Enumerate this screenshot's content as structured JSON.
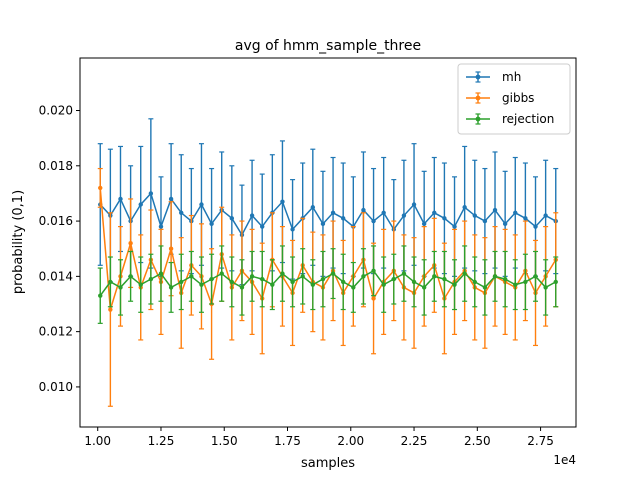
{
  "chart_data": {
    "type": "line",
    "title": "avg of hmm_sample_three",
    "xlabel": "samples",
    "ylabel": "probability (0,1)",
    "x_offset_label": "1e4",
    "xlim": [
      0.93,
      2.89
    ],
    "ylim": [
      0.00855,
      0.0219
    ],
    "x_ticks": [
      {
        "value": 1.0,
        "label": "1.00"
      },
      {
        "value": 1.25,
        "label": "1.25"
      },
      {
        "value": 1.5,
        "label": "1.50"
      },
      {
        "value": 1.75,
        "label": "1.75"
      },
      {
        "value": 2.0,
        "label": "2.00"
      },
      {
        "value": 2.25,
        "label": "2.25"
      },
      {
        "value": 2.5,
        "label": "2.50"
      },
      {
        "value": 2.75,
        "label": "2.75"
      }
    ],
    "y_ticks": [
      {
        "value": 0.01,
        "label": "0.010"
      },
      {
        "value": 0.012,
        "label": "0.012"
      },
      {
        "value": 0.014,
        "label": "0.014"
      },
      {
        "value": 0.016,
        "label": "0.016"
      },
      {
        "value": 0.018,
        "label": "0.018"
      },
      {
        "value": 0.02,
        "label": "0.020"
      }
    ],
    "grid": false,
    "legend": "top-right",
    "x": [
      1.01,
      1.05,
      1.09,
      1.13,
      1.17,
      1.21,
      1.25,
      1.29,
      1.33,
      1.37,
      1.41,
      1.45,
      1.49,
      1.53,
      1.57,
      1.61,
      1.65,
      1.69,
      1.73,
      1.77,
      1.81,
      1.85,
      1.89,
      1.93,
      1.97,
      2.01,
      2.05,
      2.09,
      2.13,
      2.17,
      2.21,
      2.25,
      2.29,
      2.33,
      2.37,
      2.41,
      2.45,
      2.49,
      2.53,
      2.57,
      2.61,
      2.65,
      2.69,
      2.73,
      2.77,
      2.81
    ],
    "series": [
      {
        "name": "mh",
        "color": "#1f77b4",
        "values": [
          0.0166,
          0.0162,
          0.0168,
          0.016,
          0.0166,
          0.017,
          0.0158,
          0.0168,
          0.0163,
          0.016,
          0.0166,
          0.0159,
          0.0164,
          0.0161,
          0.0155,
          0.0162,
          0.0158,
          0.0163,
          0.0167,
          0.0157,
          0.0161,
          0.0165,
          0.0159,
          0.0163,
          0.0161,
          0.0158,
          0.0164,
          0.016,
          0.0163,
          0.0157,
          0.0162,
          0.0166,
          0.0159,
          0.0163,
          0.0161,
          0.0158,
          0.0165,
          0.0162,
          0.016,
          0.0164,
          0.0159,
          0.0163,
          0.0161,
          0.0158,
          0.0162,
          0.016
        ],
        "errors": [
          0.0022,
          0.0024,
          0.0019,
          0.002,
          0.0021,
          0.0027,
          0.0018,
          0.002,
          0.0021,
          0.0019,
          0.0022,
          0.002,
          0.0021,
          0.0019,
          0.0018,
          0.002,
          0.0019,
          0.0021,
          0.0022,
          0.0018,
          0.002,
          0.0021,
          0.0019,
          0.002,
          0.002,
          0.0018,
          0.0021,
          0.0019,
          0.002,
          0.0018,
          0.002,
          0.0022,
          0.0019,
          0.002,
          0.002,
          0.0018,
          0.0022,
          0.002,
          0.0019,
          0.0021,
          0.0019,
          0.002,
          0.002,
          0.0018,
          0.002,
          0.0019
        ]
      },
      {
        "name": "gibbs",
        "color": "#ff7f0e",
        "values": [
          0.0172,
          0.0128,
          0.014,
          0.0152,
          0.0136,
          0.0146,
          0.0138,
          0.015,
          0.0134,
          0.0144,
          0.014,
          0.013,
          0.0148,
          0.0136,
          0.0142,
          0.0138,
          0.0132,
          0.0146,
          0.014,
          0.0134,
          0.0144,
          0.0138,
          0.0136,
          0.0142,
          0.0134,
          0.014,
          0.0146,
          0.0132,
          0.0138,
          0.0142,
          0.0136,
          0.0134,
          0.014,
          0.0144,
          0.0132,
          0.0138,
          0.0142,
          0.0136,
          0.0134,
          0.014,
          0.0138,
          0.0136,
          0.0142,
          0.0134,
          0.014,
          0.0146
        ],
        "errors": [
          0.0007,
          0.0035,
          0.0018,
          0.0016,
          0.0019,
          0.0018,
          0.0019,
          0.0017,
          0.002,
          0.0018,
          0.0019,
          0.002,
          0.0017,
          0.0019,
          0.0018,
          0.0019,
          0.002,
          0.0017,
          0.0018,
          0.0019,
          0.0017,
          0.0018,
          0.0019,
          0.0018,
          0.0019,
          0.0018,
          0.0017,
          0.002,
          0.0019,
          0.0018,
          0.0019,
          0.002,
          0.0018,
          0.0017,
          0.002,
          0.0019,
          0.0018,
          0.0019,
          0.002,
          0.0018,
          0.0019,
          0.0019,
          0.0018,
          0.0019,
          0.0018,
          0.0017
        ]
      },
      {
        "name": "rejection",
        "color": "#2ca02c",
        "values": [
          0.0133,
          0.0138,
          0.0136,
          0.014,
          0.0137,
          0.0139,
          0.0141,
          0.0136,
          0.0138,
          0.014,
          0.0137,
          0.0139,
          0.0141,
          0.0138,
          0.0136,
          0.014,
          0.0139,
          0.0137,
          0.0141,
          0.0138,
          0.014,
          0.0137,
          0.0139,
          0.0141,
          0.0138,
          0.0136,
          0.014,
          0.0142,
          0.0137,
          0.0139,
          0.0141,
          0.0138,
          0.0136,
          0.014,
          0.0139,
          0.0137,
          0.0141,
          0.0138,
          0.0136,
          0.014,
          0.0139,
          0.0137,
          0.0138,
          0.014,
          0.0136,
          0.0138
        ],
        "errors": [
          0.001,
          0.0009,
          0.001,
          0.0009,
          0.001,
          0.0009,
          0.001,
          0.0009,
          0.001,
          0.0009,
          0.001,
          0.0009,
          0.001,
          0.0009,
          0.001,
          0.0009,
          0.001,
          0.0009,
          0.001,
          0.0009,
          0.001,
          0.0009,
          0.001,
          0.0009,
          0.001,
          0.0009,
          0.001,
          0.0009,
          0.001,
          0.0009,
          0.001,
          0.0009,
          0.001,
          0.0009,
          0.001,
          0.0009,
          0.001,
          0.0009,
          0.001,
          0.0009,
          0.001,
          0.0009,
          0.001,
          0.0009,
          0.001,
          0.0009
        ]
      }
    ]
  }
}
